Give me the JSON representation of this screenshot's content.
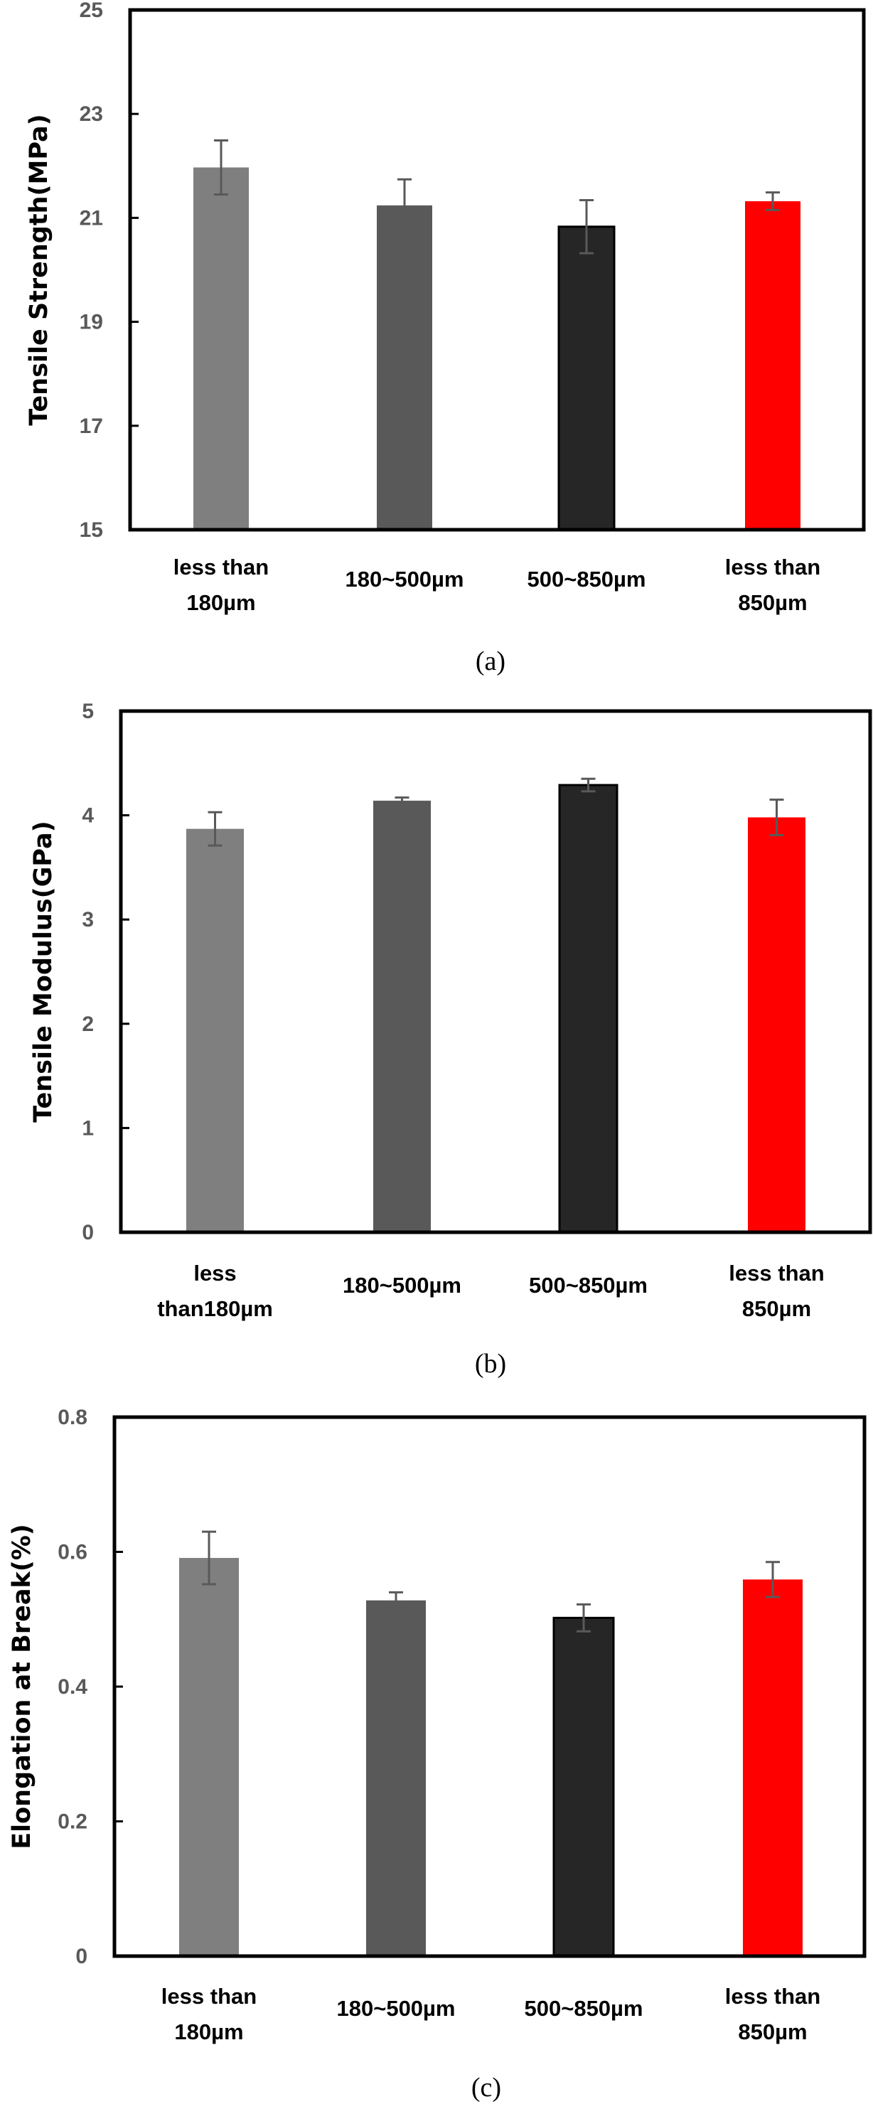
{
  "figure": {
    "captions": [
      "(a)",
      "(b)",
      "(c)"
    ]
  },
  "chart_data": [
    {
      "type": "bar",
      "panel": "(a)",
      "title": "",
      "xlabel": "",
      "ylabel": "Tensile Strength(MPa)",
      "ylim": [
        15,
        25
      ],
      "yticks": [
        15,
        17,
        19,
        21,
        23,
        25
      ],
      "grid": false,
      "categories": [
        [
          "less than",
          "180µm"
        ],
        [
          "180~500µm"
        ],
        [
          "500~850µm"
        ],
        [
          "less than",
          "850µm"
        ]
      ],
      "values": [
        21.97,
        21.24,
        20.83,
        21.32
      ],
      "errors": [
        0.52,
        0.5,
        0.51,
        0.17
      ],
      "colors": [
        "#7f7f7f",
        "#595959",
        "#262626",
        "#ff0000"
      ]
    },
    {
      "type": "bar",
      "panel": "(b)",
      "title": "",
      "xlabel": "",
      "ylabel": "Tensile Modulus(GPa)",
      "ylim": [
        0,
        5
      ],
      "yticks": [
        0,
        1,
        2,
        3,
        4,
        5
      ],
      "grid": false,
      "categories": [
        [
          "less",
          "than180µm"
        ],
        [
          "180~500µm"
        ],
        [
          "500~850µm"
        ],
        [
          "less than",
          "850µm"
        ]
      ],
      "values": [
        3.87,
        4.14,
        4.29,
        3.98
      ],
      "errors": [
        0.16,
        0.03,
        0.06,
        0.17
      ],
      "colors": [
        "#7f7f7f",
        "#595959",
        "#262626",
        "#ff0000"
      ]
    },
    {
      "type": "bar",
      "panel": "(c)",
      "title": "",
      "xlabel": "",
      "ylabel": "Elongation at Break(%)",
      "ylim": [
        0,
        0.8
      ],
      "yticks": [
        0,
        0.2,
        0.4,
        0.6,
        0.8
      ],
      "ytick_labels": [
        "0",
        "0.2",
        "0.4",
        "0.6",
        "0.8"
      ],
      "grid": false,
      "categories": [
        [
          "less than",
          "180µm"
        ],
        [
          "180~500µm"
        ],
        [
          "500~850µm"
        ],
        [
          "less than",
          "850µm"
        ]
      ],
      "values": [
        0.591,
        0.528,
        0.502,
        0.559
      ],
      "errors": [
        0.039,
        0.012,
        0.02,
        0.026
      ],
      "colors": [
        "#7f7f7f",
        "#595959",
        "#262626",
        "#ff0000"
      ]
    }
  ]
}
